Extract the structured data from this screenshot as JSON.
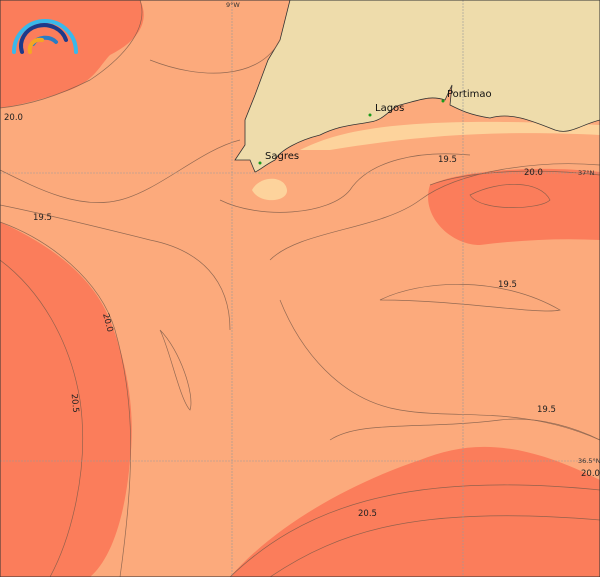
{
  "map": {
    "colors": {
      "base": "#fcaa7c",
      "warm": "#fb7d5b",
      "cool": "#fdd39c",
      "land": "#eedcab",
      "contour": "#7a5a48",
      "grid": "#999999"
    },
    "gridlines": {
      "lon_label": "9°W",
      "lat_labels": [
        "37°N",
        "36.5°N"
      ]
    },
    "cities": [
      {
        "name": "Sagres"
      },
      {
        "name": "Lagos"
      },
      {
        "name": "Portimao"
      }
    ],
    "contour_labels": [
      "20.0",
      "19.5",
      "20.0",
      "20.5",
      "19.5",
      "20.0",
      "19.5",
      "19.5",
      "20.0",
      "20.5"
    ],
    "logo": "rainbow-logo-icon"
  }
}
